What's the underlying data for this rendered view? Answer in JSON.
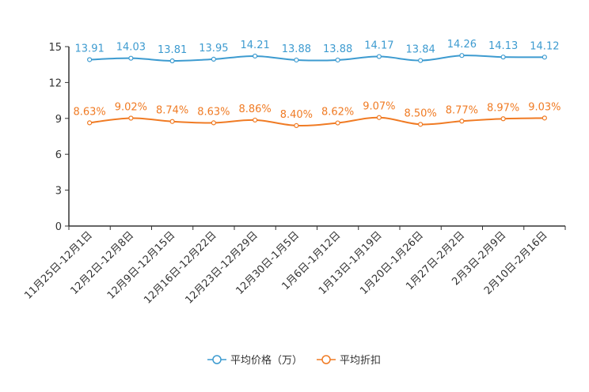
{
  "chart_data": {
    "type": "line",
    "title": "",
    "xlabel": "",
    "ylabel": "",
    "ylim": [
      0,
      15
    ],
    "yticks": [
      0,
      3,
      6,
      9,
      12,
      15
    ],
    "grid": false,
    "legend_position": "bottom-center",
    "categories": [
      "11月25日-12月1日",
      "12月2日-12月8日",
      "12月9日-12月15日",
      "12月16日-12月22日",
      "12月23日-12月29日",
      "12月30日-1月5日",
      "1月6日-1月12日",
      "1月13日-1月19日",
      "1月20日-1月26日",
      "1月27日-2月2日",
      "2月3日-2月9日",
      "2月10日-2月16日"
    ],
    "series": [
      {
        "name": "平均价格（万）",
        "color": "#3d9bd0",
        "values": [
          13.91,
          14.03,
          13.81,
          13.95,
          14.21,
          13.88,
          13.88,
          14.17,
          13.84,
          14.26,
          14.13,
          14.12
        ],
        "labels": [
          "13.91",
          "14.03",
          "13.81",
          "13.95",
          "14.21",
          "13.88",
          "13.88",
          "14.17",
          "13.84",
          "14.26",
          "14.13",
          "14.12"
        ]
      },
      {
        "name": "平均折扣",
        "color": "#f07b24",
        "values": [
          8.63,
          9.02,
          8.74,
          8.63,
          8.86,
          8.4,
          8.62,
          9.07,
          8.5,
          8.77,
          8.97,
          9.03
        ],
        "labels": [
          "8.63%",
          "9.02%",
          "8.74%",
          "8.63%",
          "8.86%",
          "8.40%",
          "8.62%",
          "9.07%",
          "8.50%",
          "8.77%",
          "8.97%",
          "9.03%"
        ]
      }
    ]
  }
}
